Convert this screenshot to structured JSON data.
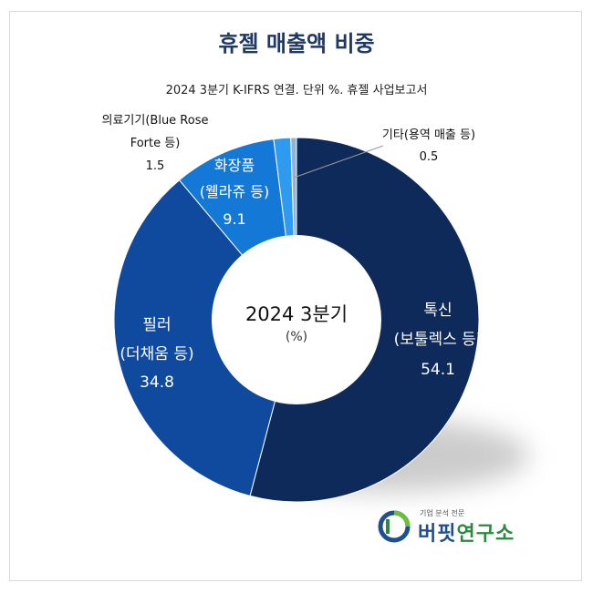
{
  "title": "휴젤 매출액 비중",
  "subtitle": "2024 3분기 K-IFRS 연결. 단위 %. 휴젤 사업보고서",
  "center": {
    "line1": "2024 3분기",
    "line2": "(%)"
  },
  "chart_data": {
    "type": "pie",
    "categories": [
      "톡신 (보툴렉스 등)",
      "필러 (더채움 등)",
      "화장품 (웰라쥬 등)",
      "의료기기(Blue Rose Forte 등)",
      "기타(용역 매출 등)"
    ],
    "values": [
      54.1,
      34.8,
      9.1,
      1.5,
      0.5
    ],
    "title": "휴젤 매출액 비중",
    "subtitle": "2024 3분기 K-IFRS 연결. 단위 %. 휴젤 사업보고서",
    "legend": "none"
  },
  "slices": [
    {
      "key": "toxin",
      "label_line1": "톡신",
      "label_line2": "(보툴렉스 등)",
      "value": "54.1",
      "color": "#0d2a5a"
    },
    {
      "key": "filler",
      "label_line1": "필러",
      "label_line2": "(더채움 등)",
      "value": "34.8",
      "color": "#0f4a9e"
    },
    {
      "key": "cosmetics",
      "label_line1": "화장품",
      "label_line2": "(웰라쥬 등)",
      "value": "9.1",
      "color": "#1479d6"
    },
    {
      "key": "device",
      "label_line1": "의료기기(Blue Rose",
      "label_line2": "Forte 등)",
      "value": "1.5",
      "color": "#2f9bf0"
    },
    {
      "key": "other",
      "label_line1": "기타(용역 매출 등)",
      "label_line2": "",
      "value": "0.5",
      "color": "#8fb3d6"
    }
  ],
  "logo": {
    "sub": "기업 분석 전문",
    "name_part1": "버핏",
    "name_part2": "연구소"
  }
}
